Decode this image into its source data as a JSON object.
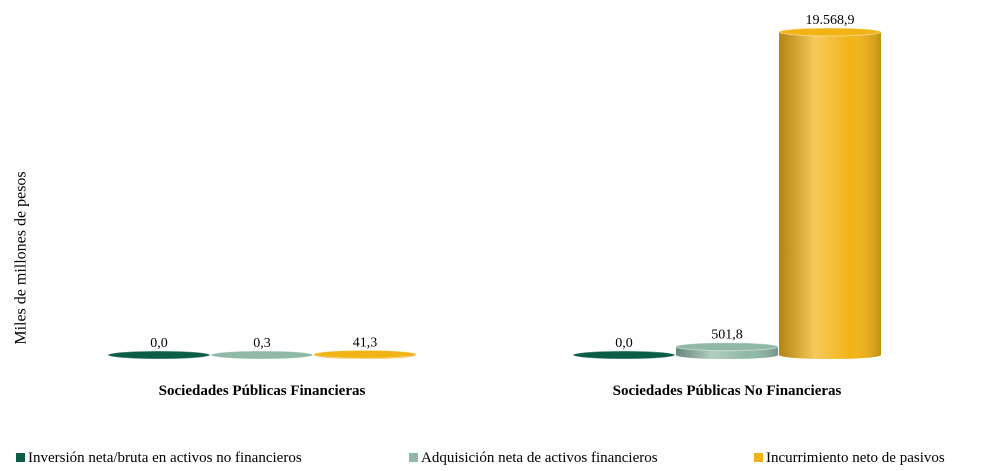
{
  "chart_data": {
    "type": "bar",
    "y_label": "Miles de millones de pesos",
    "categories": [
      "Sociedades Públicas Financieras",
      "Sociedades Públicas No Financieras"
    ],
    "series": [
      {
        "name": "Inversión neta/bruta en activos no financieros",
        "color": "#0b5e45",
        "values": [
          0.0,
          0.0
        ],
        "value_labels": [
          "0,0",
          "0,0"
        ]
      },
      {
        "name": "Adquisición neta de activos financieros",
        "color": "#8fb8a6",
        "values": [
          0.3,
          501.8
        ],
        "value_labels": [
          "0,3",
          "501,8"
        ]
      },
      {
        "name": "Incurrimiento neto de pasivos",
        "color": "#f2b316",
        "values": [
          41.3,
          19568.9
        ],
        "value_labels": [
          "41,3",
          "19.568,9"
        ]
      }
    ]
  }
}
